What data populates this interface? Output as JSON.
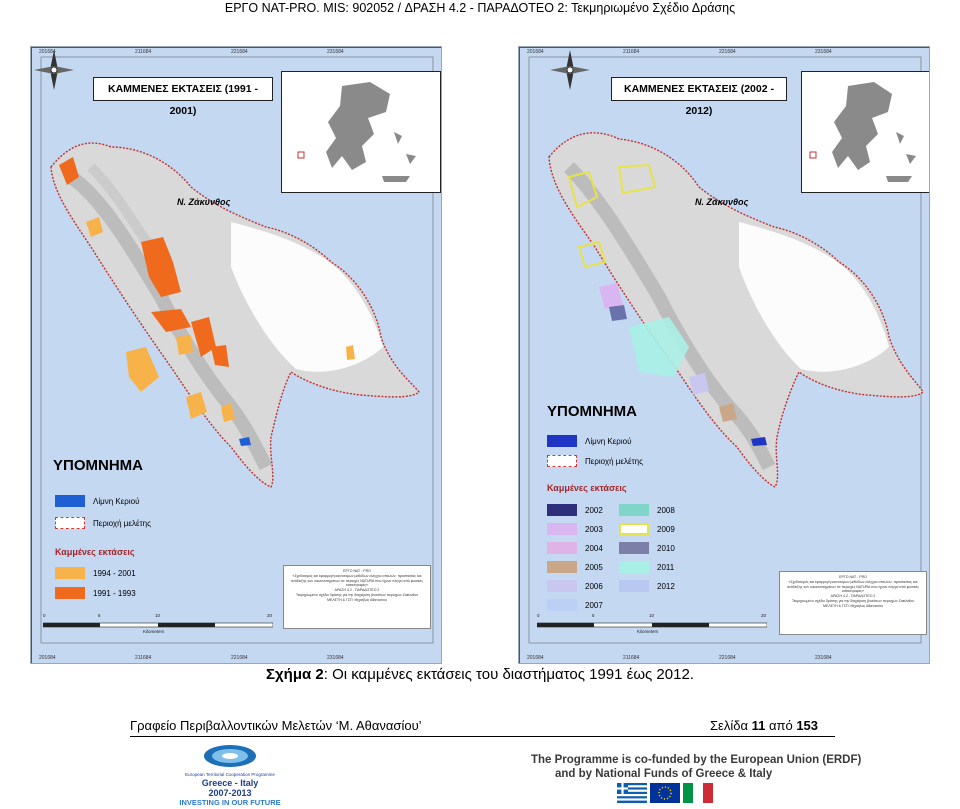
{
  "header": {
    "text": "ΕΡΓΟ NAT-PRO. MIS: 902052 / ΔΡΑΣΗ 4.2 - ΠΑΡΑΔΟΤΕΟ 2: Τεκμηριωμένο Σχέδιο Δράσης"
  },
  "maps": {
    "left": {
      "title": "ΚΑΜΜΕΝΕΣ ΕΚΤΑΣΕΙΣ (1991 - 2001)",
      "island_label": "Ν. Ζάκυνθος",
      "legend_title": "ΥΠΟΜΝΗΜΑ",
      "legend_items": [
        {
          "label": "Λίμνη Κεριού",
          "color": "#1f5fd4"
        },
        {
          "label": "Περιοχή μελέτης",
          "color": "#d63b3b"
        }
      ],
      "burned_title": "Καμμένες εκτάσεις",
      "burned_items": [
        {
          "label": "1994 - 2001",
          "color": "#f7b24a"
        },
        {
          "label": "1991 - 1993",
          "color": "#f06a1e"
        }
      ],
      "coords_top": [
        "201684",
        "211684",
        "221684",
        "231684"
      ],
      "coords_side": [
        "4198200",
        "4188200",
        "4178200",
        "4168200"
      ],
      "info_lines": [
        "ΕΡΓΟ NAT - PRO",
        "«Σχεδιασμός και εφαρμογή καινοτόμων μεθόδων ελέγχου απειλών, προστασίας και ανάδειξης των οικοσυστημάτων σε περιοχές NATURA που έχουν πληγεί από φυσικές καταστροφές»",
        "ΔΡΑΣΗ 4.2 - ΠΑΡΑΔΟΤΕΟ 2",
        "Τεκμηριωμένο σχέδιο δράσης για την διαχείριση βιοτόπων περιοχών Ζακύνθου",
        "ΜΕΛΕΤΗ & ΓΣΠ: Μιχαήλος Αθανασίου"
      ],
      "scale": {
        "ticks": [
          "0",
          "5",
          "10",
          "20"
        ],
        "unit": "Kilometers"
      }
    },
    "right": {
      "title": "ΚΑΜΜΕΝΕΣ ΕΚΤΑΣΕΙΣ (2002 - 2012)",
      "island_label": "Ν. Ζάκυνθος",
      "legend_title": "ΥΠΟΜΝΗΜΑ",
      "legend_items": [
        {
          "label": "Λίμνη Κεριού",
          "color": "#1f35c4"
        },
        {
          "label": "Περιοχή μελέτης",
          "color": "#d63b3b"
        }
      ],
      "burned_title": "Καμμένες εκτάσεις",
      "burned_items_col1": [
        {
          "label": "2002",
          "color": "#2d2f7a"
        },
        {
          "label": "2003",
          "color": "#d9b6f0"
        },
        {
          "label": "2004",
          "color": "#e0b3e6"
        },
        {
          "label": "2005",
          "color": "#caa788"
        },
        {
          "label": "2006",
          "color": "#c9c7ef"
        },
        {
          "label": "2007",
          "color": "#bcd0f6"
        }
      ],
      "burned_items_col2": [
        {
          "label": "2008",
          "color": "#7fd6c8"
        },
        {
          "label": "2009",
          "color": "#e6e34a"
        },
        {
          "label": "2010",
          "color": "#7c7fa8"
        },
        {
          "label": "2011",
          "color": "#a8f0e6"
        },
        {
          "label": "2012",
          "color": "#b8c8f0"
        }
      ],
      "coords_top": [
        "201684",
        "211684",
        "221684",
        "231684"
      ],
      "coords_side": [
        "4198200",
        "4188200",
        "4178200",
        "4168200"
      ],
      "info_lines": [
        "ΕΡΓΟ NAT - PRO",
        "«Σχεδιασμός και εφαρμογή καινοτόμων μεθόδων ελέγχου απειλών, προστασίας και ανάδειξης των οικοσυστημάτων σε περιοχές NATURA που έχουν πληγεί από φυσικές καταστροφές»",
        "ΔΡΑΣΗ 4.2 - ΠΑΡΑΔΟΤΕΟ 2",
        "Τεκμηριωμένο σχέδιο δράσης για την διαχείριση βιοτόπων περιοχών Ζακύνθου",
        "ΜΕΛΕΤΗ & ΓΣΠ: Μιχαήλος Αθανασίου"
      ],
      "scale": {
        "ticks": [
          "0",
          "5",
          "10",
          "20"
        ],
        "unit": "Kilometers"
      }
    }
  },
  "caption": {
    "label": "Σχήμα 2",
    "text": ": Οι καμμένες εκτάσεις του διαστήματος 1991 έως 2012."
  },
  "footer": {
    "office": "Γραφείο Περιβαλλοντικών Μελετών ‘Μ. Αθανασίου’",
    "page_prefix": "Σελίδα",
    "page_current": "11",
    "page_sep": "από",
    "page_total": "153"
  },
  "programme": {
    "logo_top": "European Territorial Cooperation Programme",
    "logo_name": "Greece - Italy",
    "logo_years": "2007-2013",
    "logo_slogan": "INVESTING IN OUR FUTURE",
    "cofunded_line1": "The Programme is co-funded by the European Union (ERDF)",
    "cofunded_line2": "and by National Funds of Greece & Italy"
  }
}
